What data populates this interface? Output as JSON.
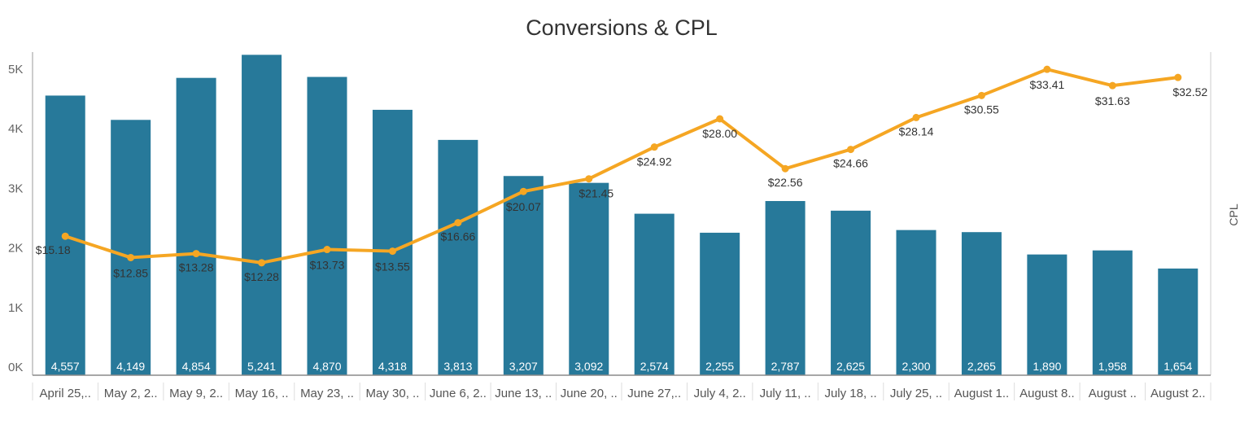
{
  "chart_data": {
    "type": "bar",
    "title": "Conversions & CPL",
    "categories": [
      "April 25,..",
      "May 2, 2..",
      "May 9, 2..",
      "May 16, ..",
      "May 23, ..",
      "May 30, ..",
      "June 6, 2..",
      "June 13, ..",
      "June 20, ..",
      "June 27,..",
      "July 4, 2..",
      "July 11, ..",
      "July 18, ..",
      "July 25, ..",
      "August 1..",
      "August 8..",
      "August ..",
      "August 2.."
    ],
    "series": [
      {
        "name": "Conversions",
        "type": "bar",
        "axis": "left",
        "color": "#27799A",
        "values": [
          4557,
          4149,
          4854,
          5241,
          4870,
          4318,
          3813,
          3207,
          3092,
          2574,
          2255,
          2787,
          2625,
          2300,
          2265,
          1890,
          1958,
          1654
        ],
        "labels": [
          "4,557",
          "4,149",
          "4,854",
          "5,241",
          "4,870",
          "4,318",
          "3,813",
          "3,207",
          "3,092",
          "2,574",
          "2,255",
          "2,787",
          "2,625",
          "2,300",
          "2,265",
          "1,890",
          "1,958",
          "1,654"
        ]
      },
      {
        "name": "CPL",
        "type": "line",
        "axis": "right",
        "color": "#F5A623",
        "values": [
          15.18,
          12.85,
          13.28,
          12.28,
          13.73,
          13.55,
          16.66,
          20.07,
          21.45,
          24.92,
          28.0,
          22.56,
          24.66,
          28.14,
          30.55,
          33.41,
          31.63,
          32.52
        ],
        "labels": [
          "$15.18",
          "$12.85",
          "$13.28",
          "$12.28",
          "$13.73",
          "$13.55",
          "$16.66",
          "$20.07",
          "$21.45",
          "$24.92",
          "$28.00",
          "$22.56",
          "$24.66",
          "$28.14",
          "$30.55",
          "$33.41",
          "$31.63",
          "$32.52"
        ]
      }
    ],
    "y_left": {
      "ticks": [
        0,
        1000,
        2000,
        3000,
        4000,
        5000
      ],
      "tick_labels": [
        "0K",
        "1K",
        "2K",
        "3K",
        "4K",
        "5K"
      ],
      "range": [
        0,
        5480
      ]
    },
    "y_right": {
      "label": "CPL",
      "range": [
        0,
        35.12
      ]
    }
  }
}
